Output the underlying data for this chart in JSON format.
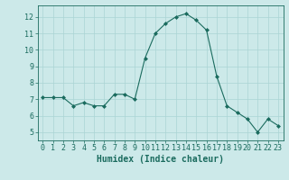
{
  "x": [
    0,
    1,
    2,
    3,
    4,
    5,
    6,
    7,
    8,
    9,
    10,
    11,
    12,
    13,
    14,
    15,
    16,
    17,
    18,
    19,
    20,
    21,
    22,
    23
  ],
  "y": [
    7.1,
    7.1,
    7.1,
    6.6,
    6.8,
    6.6,
    6.6,
    7.3,
    7.3,
    7.0,
    9.5,
    11.0,
    11.6,
    12.0,
    12.2,
    11.8,
    11.2,
    8.4,
    6.6,
    6.2,
    5.8,
    5.0,
    5.8,
    5.4
  ],
  "line_color": "#1a6b5e",
  "marker": "D",
  "marker_size": 2.0,
  "bg_color": "#cce9e9",
  "grid_color": "#aad4d4",
  "xlabel": "Humidex (Indice chaleur)",
  "xlim": [
    -0.5,
    23.5
  ],
  "ylim": [
    4.5,
    12.7
  ],
  "yticks": [
    5,
    6,
    7,
    8,
    9,
    10,
    11,
    12
  ],
  "xticks": [
    0,
    1,
    2,
    3,
    4,
    5,
    6,
    7,
    8,
    9,
    10,
    11,
    12,
    13,
    14,
    15,
    16,
    17,
    18,
    19,
    20,
    21,
    22,
    23
  ],
  "tick_color": "#1a6b5e",
  "label_fontsize": 7.0,
  "tick_fontsize": 6.0
}
